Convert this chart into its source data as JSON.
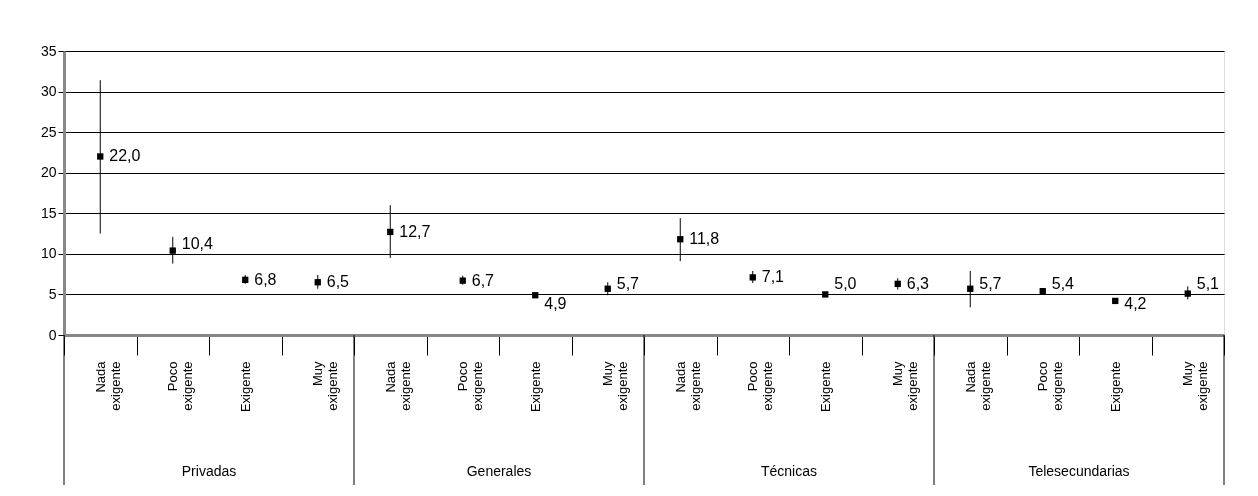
{
  "chart_data": {
    "type": "scatter",
    "categories": [
      "Nada exigente",
      "Poco exigente",
      "Exigente",
      "Muy exigente",
      "Nada exigente",
      "Poco exigente",
      "Exigente",
      "Muy exigente",
      "Nada exigente",
      "Poco exigente",
      "Exigente",
      "Muy exigente",
      "Nada exigente",
      "Poco exigente",
      "Exigente",
      "Muy exigente"
    ],
    "values": [
      22.0,
      10.4,
      6.8,
      6.5,
      12.7,
      6.7,
      4.9,
      5.7,
      11.8,
      7.1,
      5.0,
      6.3,
      5.7,
      5.4,
      4.2,
      5.1
    ],
    "errors": [
      [
        12.5,
        31.4
      ],
      [
        8.8,
        12.1
      ],
      [
        6.3,
        7.4
      ],
      [
        5.7,
        7.4
      ],
      [
        9.5,
        16.0
      ],
      [
        6.2,
        7.3
      ],
      [
        4.7,
        5.1
      ],
      [
        4.9,
        6.5
      ],
      [
        9.1,
        14.4
      ],
      [
        6.4,
        7.9
      ],
      [
        4.8,
        5.2
      ],
      [
        5.6,
        7.0
      ],
      [
        3.4,
        7.9
      ],
      [
        5.0,
        5.8
      ],
      [
        4.0,
        4.4
      ],
      [
        4.4,
        6.0
      ]
    ],
    "color": "#000000",
    "ylim": [
      0,
      35
    ],
    "yticks": [
      0,
      5,
      10,
      15,
      20,
      25,
      30,
      35
    ],
    "value_labels": [
      "22,0",
      "10,4",
      "6,8",
      "6,5",
      "12,7",
      "6,7",
      "4,9",
      "5,7",
      "11,8",
      "7,1",
      "5,0",
      "6,3",
      "5,7",
      "5,4",
      "4,2",
      "5,1"
    ],
    "grid": "y",
    "marker": "square",
    "annotations": [
      "Privadas",
      "Generales",
      "Técnicas",
      "Telesecundarias"
    ]
  }
}
